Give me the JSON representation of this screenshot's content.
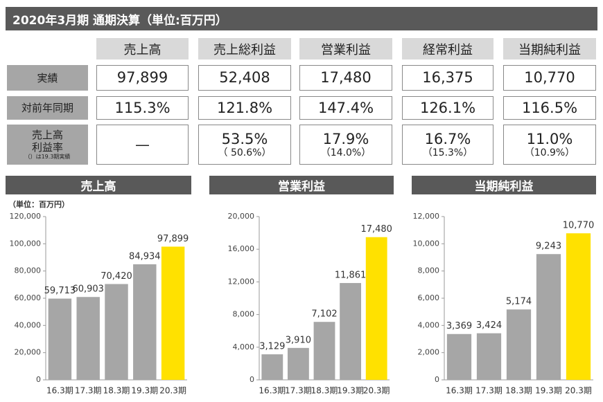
{
  "title": "2020年3月期 通期決算（単位:百万円）",
  "table": {
    "columns": [
      "売上高",
      "売上総利益",
      "営業利益",
      "経常利益",
      "当期純利益"
    ],
    "rows": [
      {
        "label": [
          "実績"
        ],
        "cells": [
          {
            "main": "97,899"
          },
          {
            "main": "52,408"
          },
          {
            "main": "17,480"
          },
          {
            "main": "16,375"
          },
          {
            "main": "10,770"
          }
        ]
      },
      {
        "label": [
          "対前年同期"
        ],
        "cells": [
          {
            "main": "115.3%"
          },
          {
            "main": "121.8%"
          },
          {
            "main": "147.4%"
          },
          {
            "main": "126.1%"
          },
          {
            "main": "116.5%"
          }
        ]
      },
      {
        "label": [
          "売上高",
          "利益率"
        ],
        "note": "（）は19.3期実績",
        "cells": [
          {
            "main": "—"
          },
          {
            "main": "53.5%",
            "sub": "（ 50.6%）"
          },
          {
            "main": "17.9%",
            "sub": "（14.0%）"
          },
          {
            "main": "16.7%",
            "sub": "（15.3%）"
          },
          {
            "main": "11.0%",
            "sub": "（10.9%）"
          }
        ]
      }
    ]
  },
  "chart_data": [
    {
      "type": "bar",
      "title": "売上高",
      "unit_label": "（単位：百万円）",
      "categories": [
        "16.3期",
        "17.3期",
        "18.3期",
        "19.3期",
        "20.3期"
      ],
      "values": [
        59713,
        60903,
        70420,
        84934,
        97899
      ],
      "value_labels": [
        "59,713",
        "60,903",
        "70,420",
        "84,934",
        "97,899"
      ],
      "colors": [
        "#a6a6a6",
        "#a6a6a6",
        "#a6a6a6",
        "#a6a6a6",
        "#ffe100"
      ],
      "ylim": [
        0,
        120000
      ],
      "yticks": [
        0,
        {
          "value": 20000,
          "label": "20,000"
        },
        {
          "value": 40000,
          "label": "40,000"
        },
        {
          "value": 60000,
          "label": "60,000"
        },
        {
          "value": 80000,
          "label": "80,000"
        },
        {
          "value": 100000,
          "label": "100,000"
        },
        {
          "value": 120000,
          "label": "120,000"
        }
      ],
      "grid": false
    },
    {
      "type": "bar",
      "title": "営業利益",
      "categories": [
        "16.3期",
        "17.3期",
        "18.3期",
        "19.3期",
        "20.3期"
      ],
      "values": [
        3129,
        3910,
        7102,
        11861,
        17480
      ],
      "value_labels": [
        "3,129",
        "3,910",
        "7,102",
        "11,861",
        "17,480"
      ],
      "colors": [
        "#a6a6a6",
        "#a6a6a6",
        "#a6a6a6",
        "#a6a6a6",
        "#ffe100"
      ],
      "ylim": [
        0,
        20000
      ],
      "yticks": [
        0,
        {
          "value": 4000,
          "label": "4,000"
        },
        {
          "value": 8000,
          "label": "8,000"
        },
        {
          "value": 12000,
          "label": "12,000"
        },
        {
          "value": 16000,
          "label": "16,000"
        },
        {
          "value": 20000,
          "label": "20,000"
        }
      ],
      "grid": false
    },
    {
      "type": "bar",
      "title": "当期純利益",
      "categories": [
        "16.3期",
        "17.3期",
        "18.3期",
        "19.3期",
        "20.3期"
      ],
      "values": [
        3369,
        3424,
        5174,
        9243,
        10770
      ],
      "value_labels": [
        "3,369",
        "3,424",
        "5,174",
        "9,243",
        "10,770"
      ],
      "colors": [
        "#a6a6a6",
        "#a6a6a6",
        "#a6a6a6",
        "#a6a6a6",
        "#ffe100"
      ],
      "ylim": [
        0,
        12000
      ],
      "yticks": [
        0,
        {
          "value": 2000,
          "label": "2,000"
        },
        {
          "value": 4000,
          "label": "4,000"
        },
        {
          "value": 6000,
          "label": "6,000"
        },
        {
          "value": 8000,
          "label": "8,000"
        },
        {
          "value": 10000,
          "label": "10,000"
        },
        {
          "value": 12000,
          "label": "12,000"
        }
      ],
      "grid": false
    }
  ]
}
